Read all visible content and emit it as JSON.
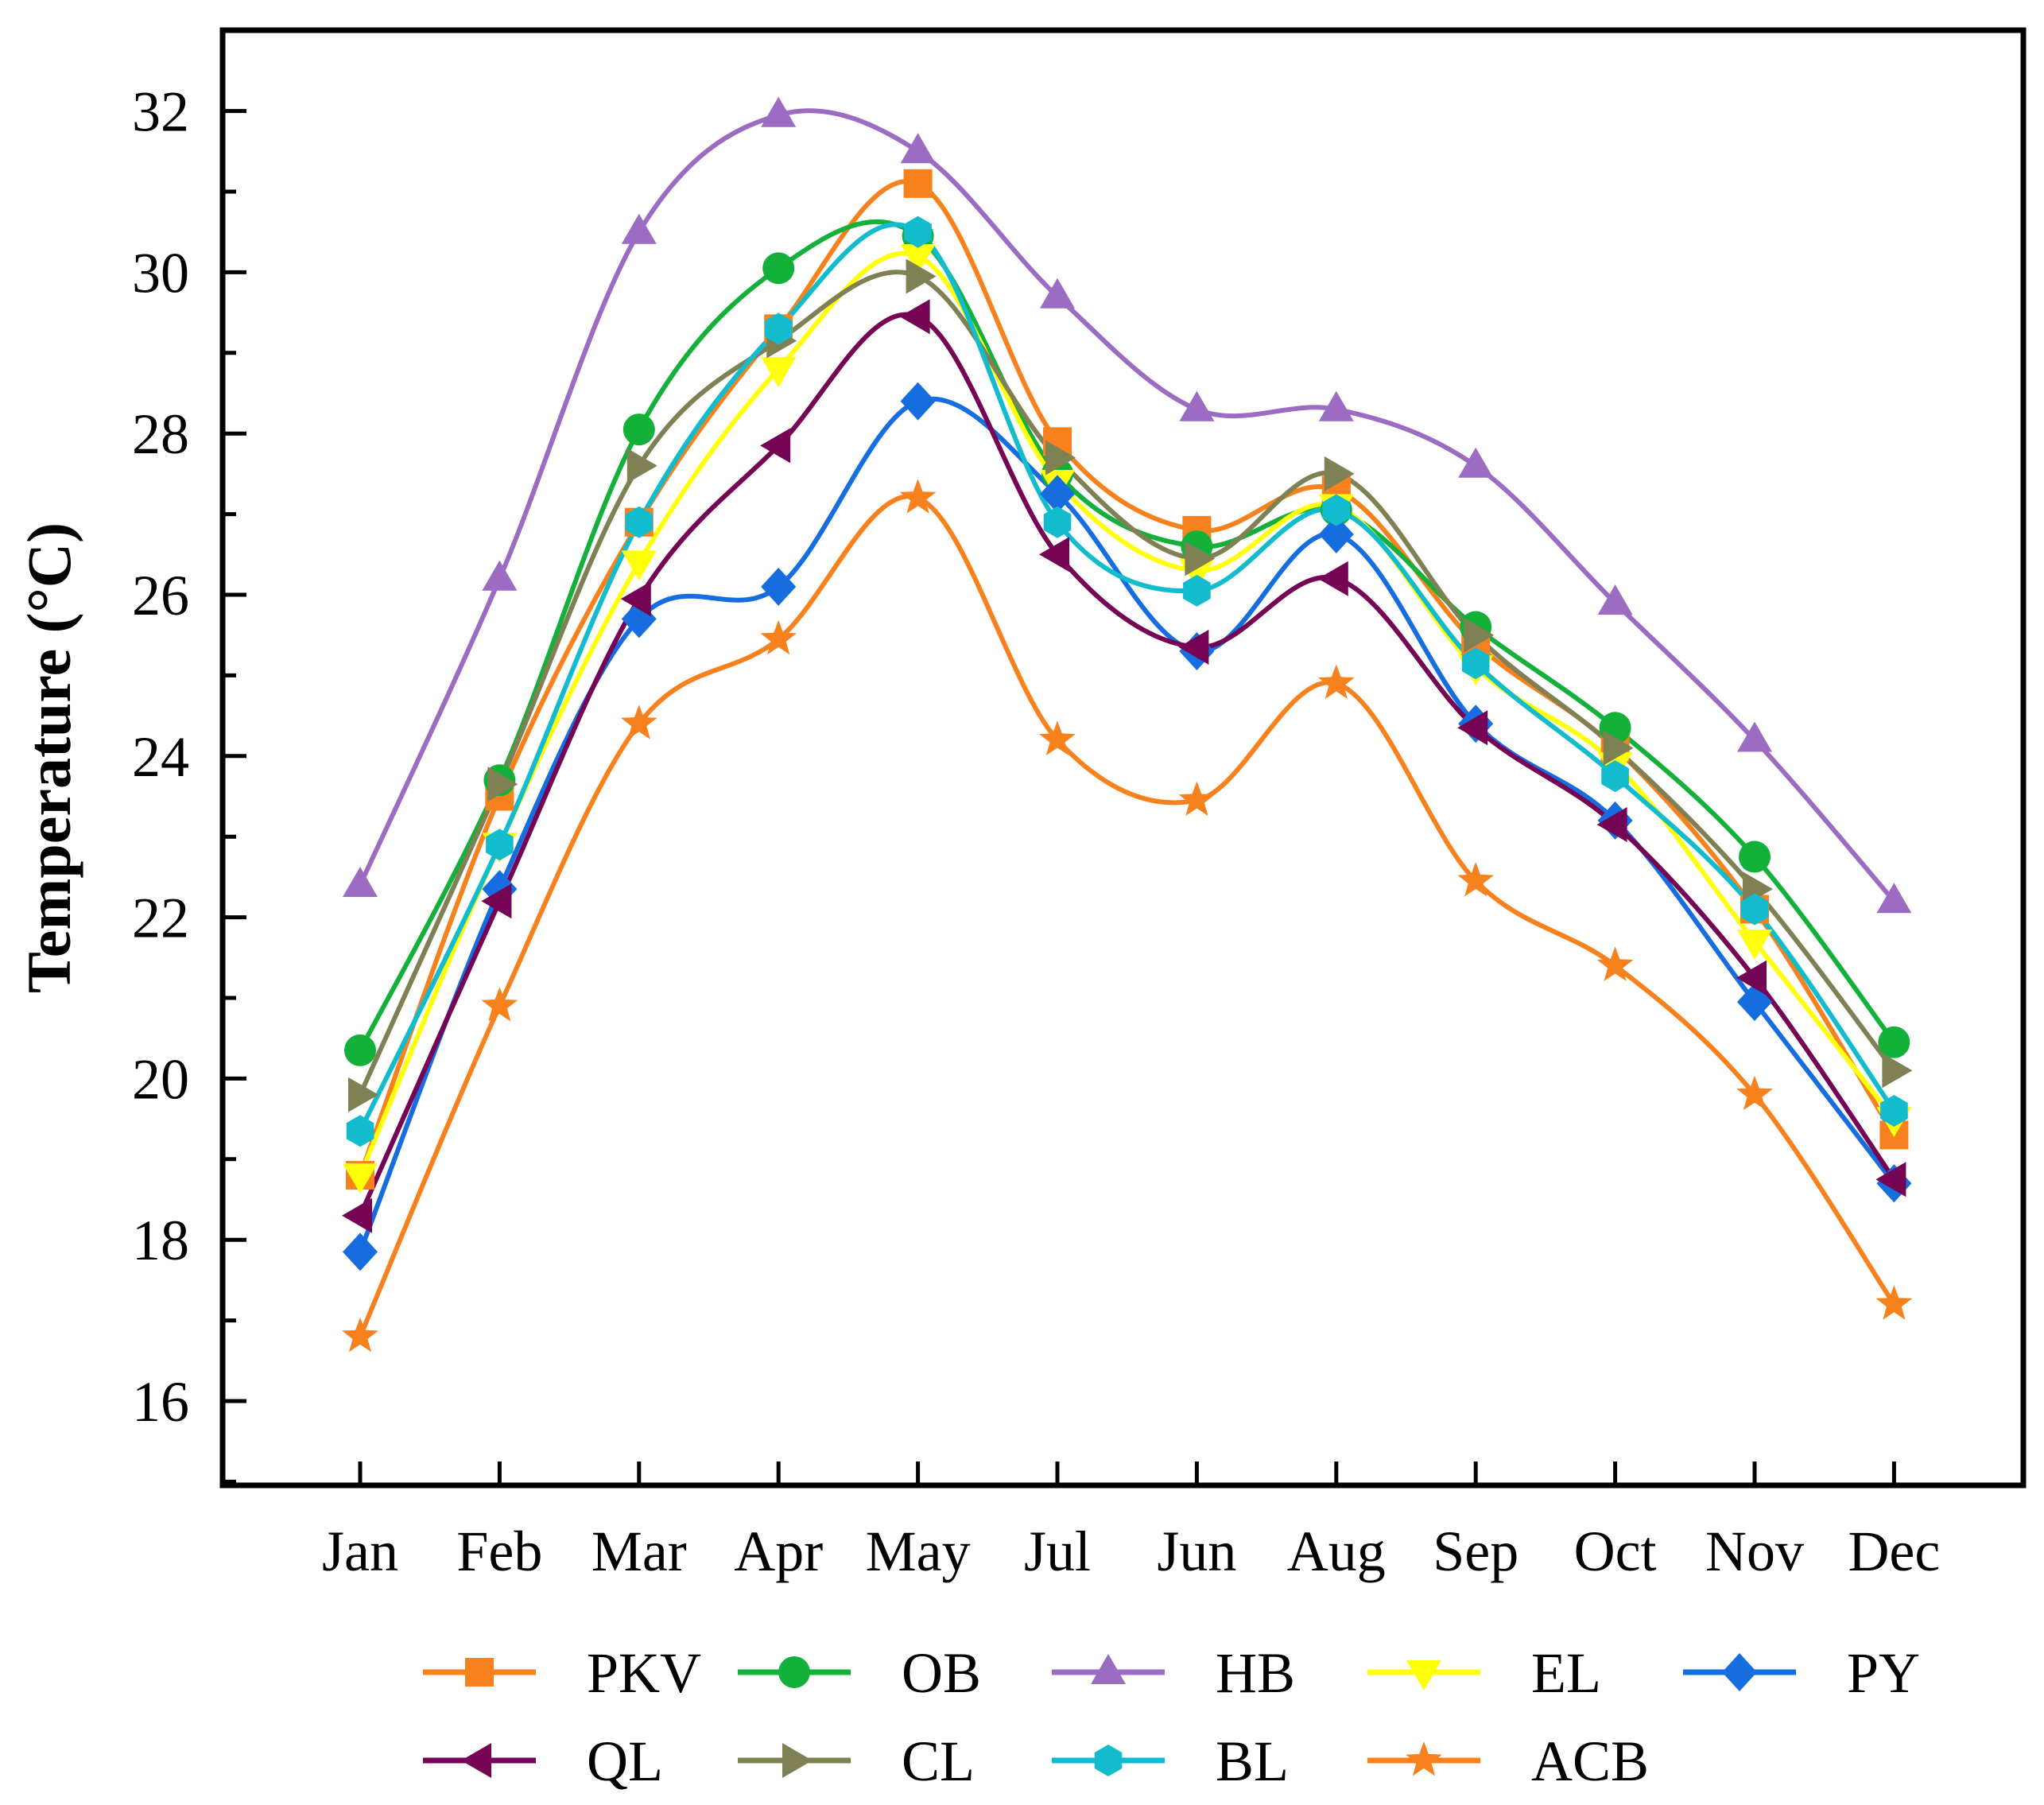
{
  "chart_data": {
    "type": "line",
    "title": "",
    "xlabel": "",
    "ylabel": "Temperature (°C)",
    "ylim": [
      15,
      33
    ],
    "yticks": [
      16,
      18,
      20,
      22,
      24,
      26,
      28,
      30,
      32
    ],
    "grid": false,
    "legend_position": "bottom",
    "categories": [
      "Jan",
      "Feb",
      "Mar",
      "Apr",
      "May",
      "Jul",
      "Jun",
      "Aug",
      "Sep",
      "Oct",
      "Nov",
      "Dec"
    ],
    "series": [
      {
        "name": "PKV",
        "color": "#f7811d",
        "marker": "square",
        "values": [
          18.8,
          23.5,
          26.9,
          29.3,
          31.1,
          27.9,
          26.8,
          27.3,
          25.4,
          24.1,
          22.1,
          19.3
        ]
      },
      {
        "name": "OB",
        "color": "#13b03a",
        "marker": "circle",
        "values": [
          20.35,
          23.7,
          28.05,
          30.05,
          30.45,
          27.5,
          26.6,
          27.05,
          25.6,
          24.35,
          22.75,
          20.45
        ]
      },
      {
        "name": "HB",
        "color": "#9b6cc2",
        "marker": "triangle-up",
        "values": [
          22.4,
          26.2,
          30.5,
          31.95,
          31.5,
          29.7,
          28.3,
          28.3,
          27.6,
          25.9,
          24.2,
          22.2
        ]
      },
      {
        "name": "EL",
        "color": "#ffff0a",
        "marker": "triangle-down",
        "values": [
          18.8,
          22.9,
          26.4,
          28.8,
          30.2,
          27.4,
          26.3,
          27.1,
          25.1,
          23.9,
          21.7,
          19.5
        ]
      },
      {
        "name": "PY",
        "color": "#156de0",
        "marker": "diamond",
        "values": [
          17.85,
          22.35,
          25.7,
          26.1,
          28.4,
          27.25,
          25.3,
          26.75,
          24.4,
          23.2,
          20.95,
          18.7
        ]
      },
      {
        "name": "QL",
        "color": "#760454",
        "marker": "triangle-left",
        "values": [
          18.3,
          22.2,
          25.95,
          27.85,
          29.45,
          26.5,
          25.35,
          26.2,
          24.35,
          23.15,
          21.25,
          18.75
        ]
      },
      {
        "name": "CL",
        "color": "#7f8155",
        "marker": "triangle-right",
        "values": [
          19.8,
          23.65,
          27.6,
          29.15,
          29.95,
          27.7,
          26.45,
          27.5,
          25.5,
          24.1,
          22.35,
          20.1
        ]
      },
      {
        "name": "BL",
        "color": "#12bccc",
        "marker": "hexagon",
        "values": [
          19.35,
          22.9,
          26.9,
          29.3,
          30.5,
          26.9,
          26.05,
          27.05,
          25.15,
          23.75,
          22.1,
          19.6
        ]
      },
      {
        "name": "ACB",
        "color": "#f7811d",
        "marker": "star",
        "values": [
          16.8,
          20.9,
          24.4,
          25.45,
          27.2,
          24.2,
          23.45,
          24.9,
          22.45,
          21.4,
          19.8,
          17.2
        ]
      }
    ]
  }
}
